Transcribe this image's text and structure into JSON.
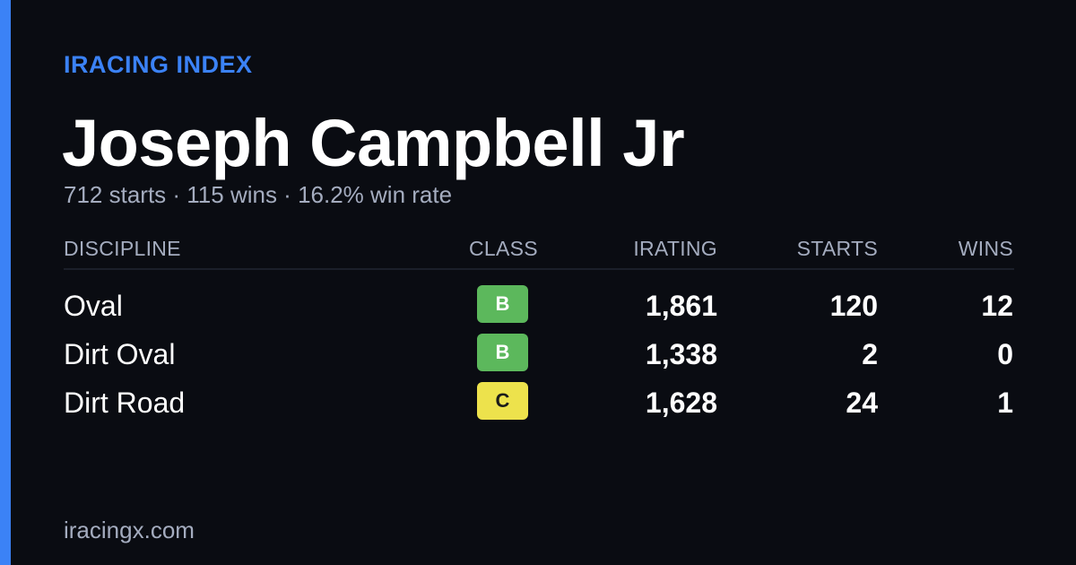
{
  "brand": "IRACING INDEX",
  "driver": {
    "name": "Joseph Campbell Jr",
    "summary": "712 starts · 115 wins · 16.2% win rate"
  },
  "table": {
    "headers": {
      "discipline": "DISCIPLINE",
      "class": "CLASS",
      "irating": "IRATING",
      "starts": "STARTS",
      "wins": "WINS"
    },
    "rows": [
      {
        "discipline": "Oval",
        "class": "B",
        "irating": "1,861",
        "starts": "120",
        "wins": "12"
      },
      {
        "discipline": "Dirt Oval",
        "class": "B",
        "irating": "1,338",
        "starts": "2",
        "wins": "0"
      },
      {
        "discipline": "Dirt Road",
        "class": "C",
        "irating": "1,628",
        "starts": "24",
        "wins": "1"
      }
    ]
  },
  "footer": "iracingx.com",
  "colors": {
    "background": "#0a0c12",
    "accent": "#3b82f6",
    "muted_text": "#a4acbf",
    "class_b": "#5cb85c",
    "class_c": "#ede24c"
  }
}
